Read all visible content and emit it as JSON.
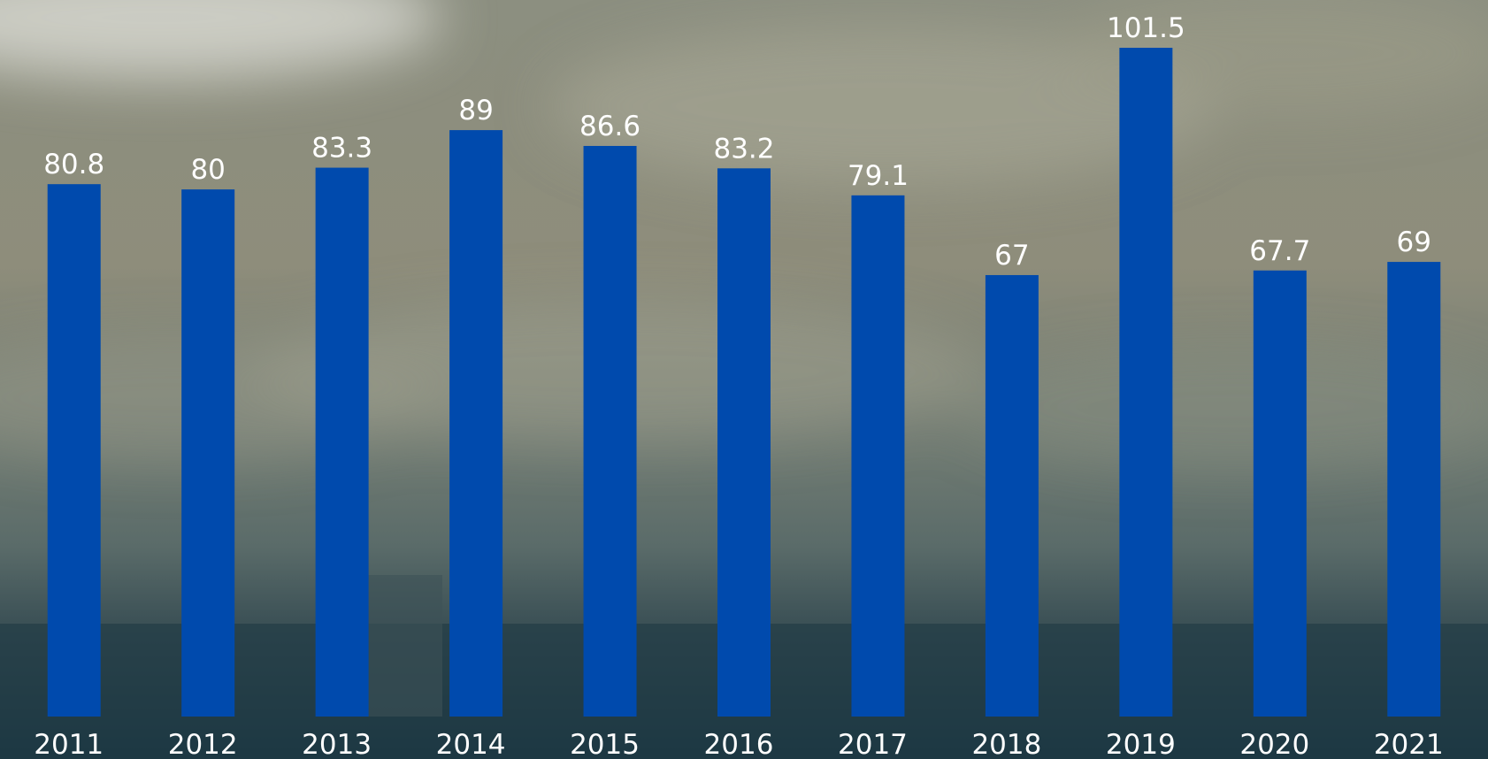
{
  "chart_data": {
    "type": "bar",
    "categories": [
      "2011",
      "2012",
      "2013",
      "2014",
      "2015",
      "2016",
      "2017",
      "2018",
      "2019",
      "2020",
      "2021"
    ],
    "values": [
      80.8,
      80,
      83.3,
      89,
      86.6,
      83.2,
      79.1,
      67,
      101.5,
      67.7,
      69
    ],
    "color": "#004aad"
  }
}
